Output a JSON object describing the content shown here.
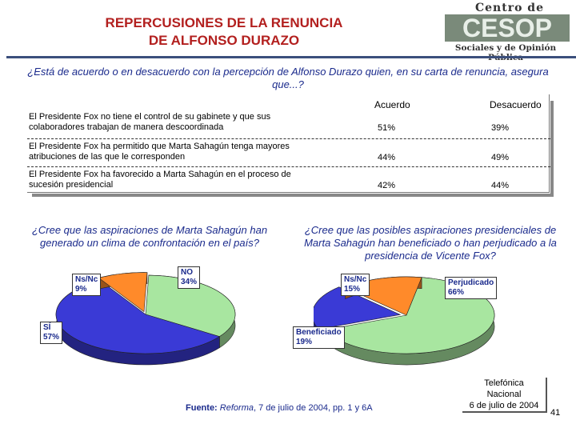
{
  "header": {
    "title_line1": "REPERCUSIONES DE LA RENUNCIA",
    "title_line2": "DE ALFONSO DURAZO",
    "logo_top": "Centro de Estudios",
    "logo_mark": "CESOP",
    "logo_bottom": "Sociales y de Opinión Pública"
  },
  "question1": "¿Está de acuerdo o en desacuerdo con la percepción de Alfonso Durazo quien, en su carta de renuncia, asegura que...?",
  "chart_data": [
    {
      "type": "table",
      "columns": [
        "Acuerdo",
        "Desacuerdo"
      ],
      "rows": [
        {
          "statement": "El Presidente Fox no tiene el control de su gabinete y que sus colaboradores trabajan de manera descoordinada",
          "acuerdo": "51%",
          "desacuerdo": "39%"
        },
        {
          "statement": "El Presidente Fox ha permitido que Marta Sahagún tenga mayores atribuciones de las que le corresponden",
          "acuerdo": "44%",
          "desacuerdo": "49%"
        },
        {
          "statement": "El Presidente Fox ha favorecido a Marta Sahagún en el proceso de sucesión presidencial",
          "acuerdo": "42%",
          "desacuerdo": "44%"
        }
      ]
    },
    {
      "type": "pie",
      "title": "¿Cree que las aspiraciones de Marta Sahagún han generado un clima de confrontación en el país?",
      "slices": [
        {
          "label": "NO",
          "value": 34,
          "display": "34%",
          "color": "#a8e6a0"
        },
        {
          "label": "SÍ",
          "value": 57,
          "display": "57%",
          "color": "#3a3ad6"
        },
        {
          "label": "Ns/Nc",
          "value": 9,
          "display": "9%",
          "color": "#ff8a2a"
        }
      ]
    },
    {
      "type": "pie",
      "title": "¿Cree que las posibles aspiraciones presidenciales de Marta Sahagún han beneficiado o han perjudicado a la presidencia de Vicente Fox?",
      "slices": [
        {
          "label": "Perjudicado",
          "value": 66,
          "display": "66%",
          "color": "#a8e6a0"
        },
        {
          "label": "Beneficiado",
          "value": 19,
          "display": "19%",
          "color": "#3a3ad6"
        },
        {
          "label": "Ns/Nc",
          "value": 15,
          "display": "15%",
          "color": "#ff8a2a"
        }
      ]
    }
  ],
  "footer": {
    "source_label": "Fuente:",
    "source_pub": "Reforma",
    "source_rest": ", 7 de julio de 2004, pp. 1 y 6A",
    "stamp_line1": "Telefónica",
    "stamp_line2": "Nacional",
    "stamp_line3": "6 de julio de 2004",
    "page_number": "41"
  },
  "colors": {
    "title": "#b3201f",
    "question": "#1a2a8c",
    "rule": "#3b4f7c"
  }
}
